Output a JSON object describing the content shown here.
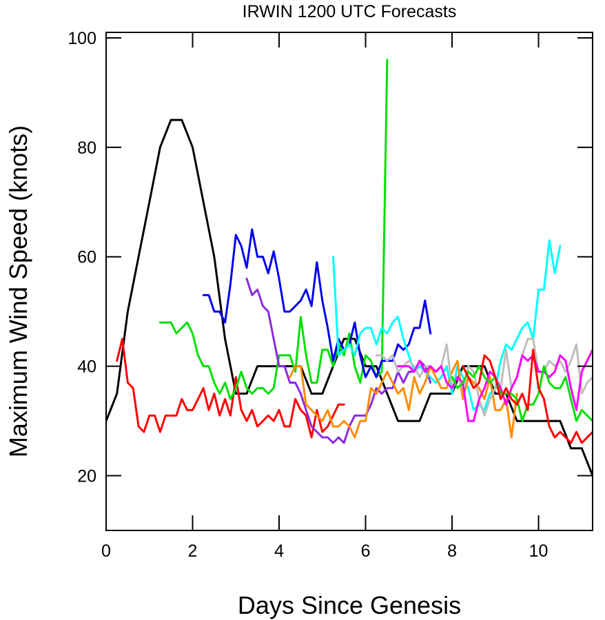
{
  "chart_data": {
    "type": "line",
    "title": "IRWIN 1200 UTC Forecasts",
    "xlabel": "Days Since Genesis",
    "ylabel": "Maximum Wind Speed (knots)",
    "xlim": [
      0,
      11.25
    ],
    "ylim": [
      10,
      101
    ],
    "xticks": [
      0,
      2,
      4,
      6,
      8,
      10
    ],
    "yticks": [
      20,
      40,
      60,
      80,
      100
    ],
    "grid": false,
    "series": [
      {
        "color": "#000000",
        "x": [
          0,
          0.25,
          0.5,
          0.75,
          1.0,
          1.25,
          1.5,
          1.75,
          2.0,
          2.25,
          2.5,
          2.75,
          3.0,
          3.25,
          3.5,
          3.75,
          4.0,
          4.25,
          4.5,
          4.75,
          5.0,
          5.25,
          5.5,
          5.75,
          6.0,
          6.25,
          6.5,
          6.75,
          7.0,
          7.25,
          7.5,
          7.75,
          8.0,
          8.25,
          8.5,
          8.75,
          9.0,
          9.25,
          9.5,
          9.75,
          10.0,
          10.25,
          10.5,
          10.75,
          11.0,
          11.25
        ],
        "y": [
          30,
          35,
          50,
          60,
          70,
          80,
          85,
          85,
          80,
          70,
          60,
          45,
          35,
          35,
          40,
          40,
          40,
          40,
          40,
          35,
          35,
          40,
          45,
          45,
          40,
          40,
          35,
          30,
          30,
          30,
          35,
          35,
          35,
          40,
          40,
          40,
          35,
          35,
          30,
          30,
          30,
          30,
          30,
          25,
          25,
          20
        ]
      },
      {
        "color": "#ff0000",
        "x": [
          0.25,
          0.375,
          0.5,
          0.625,
          0.75,
          0.875,
          1.0,
          1.125,
          1.25,
          1.375,
          1.5,
          1.625,
          1.75,
          1.875,
          2.0,
          2.125,
          2.25,
          2.375,
          2.5,
          2.625,
          2.75,
          2.875,
          3.0,
          3.125,
          3.25,
          3.375,
          3.5,
          3.625,
          3.75,
          3.875,
          4.0,
          4.125,
          4.25,
          4.375,
          4.5,
          4.625,
          4.75,
          4.875,
          5.0,
          5.125,
          5.25,
          5.375,
          5.5
        ],
        "y": [
          41,
          45,
          37,
          36,
          29,
          28,
          31,
          31,
          28,
          31,
          31,
          31,
          34,
          32,
          32,
          34,
          36,
          32,
          35,
          31,
          34,
          31,
          38,
          32,
          30,
          32,
          29,
          30,
          31,
          30,
          32,
          29,
          29,
          34,
          32,
          31,
          27,
          32,
          28,
          29,
          31,
          33,
          33
        ]
      },
      {
        "color": "#00e000",
        "x": [
          1.25,
          1.375,
          1.5,
          1.625,
          1.75,
          1.875,
          2.0,
          2.125,
          2.25,
          2.375,
          2.5,
          2.625,
          2.75,
          2.875,
          3.0,
          3.125,
          3.25,
          3.375,
          3.5,
          3.625,
          3.75,
          3.875,
          4.0,
          4.125,
          4.25,
          4.375,
          4.5,
          4.625,
          4.75,
          4.875,
          5.0,
          5.125,
          5.25,
          5.375,
          5.5,
          5.625,
          5.75,
          5.875,
          6.0,
          6.125,
          6.25,
          6.375,
          6.5
        ],
        "y": [
          48,
          48,
          48,
          46,
          47,
          48,
          46,
          42,
          40,
          40,
          37,
          35,
          37,
          34,
          36,
          39,
          36,
          35,
          36,
          36,
          35,
          36,
          42,
          42,
          42,
          39,
          49,
          42,
          37,
          37,
          43,
          43,
          40,
          44,
          42,
          46,
          40,
          37,
          42,
          41,
          38,
          39,
          96
        ]
      },
      {
        "color": "#0000ee",
        "x": [
          2.25,
          2.375,
          2.5,
          2.625,
          2.75,
          2.875,
          3.0,
          3.125,
          3.25,
          3.375,
          3.5,
          3.625,
          3.75,
          3.875,
          4.0,
          4.125,
          4.25,
          4.375,
          4.5,
          4.625,
          4.75,
          4.875,
          5.0,
          5.125,
          5.25,
          5.375,
          5.5,
          5.625,
          5.75,
          5.875,
          6.0,
          6.125,
          6.25,
          6.375,
          6.5,
          6.625,
          6.75,
          6.875,
          7.0,
          7.125,
          7.25,
          7.375,
          7.5
        ],
        "y": [
          53,
          53,
          50,
          50,
          48,
          55,
          64,
          62,
          58,
          65,
          60,
          60,
          57,
          61,
          56,
          50,
          50,
          51,
          52,
          54,
          51,
          59,
          52,
          47,
          41,
          45,
          43,
          44,
          48,
          42,
          38,
          40,
          38,
          41,
          41,
          41,
          44,
          43,
          44,
          47,
          47,
          52,
          46
        ]
      },
      {
        "color": "#8a2be2",
        "x": [
          3.25,
          3.375,
          3.5,
          3.625,
          3.75,
          3.875,
          4.0,
          4.125,
          4.25,
          4.375,
          4.5,
          4.625,
          4.75,
          4.875,
          5.0,
          5.125,
          5.25,
          5.375,
          5.5,
          5.625,
          5.75,
          5.875,
          6.0,
          6.125,
          6.25,
          6.375,
          6.5,
          6.625,
          6.75,
          6.875,
          7.0,
          7.125,
          7.25,
          7.375,
          7.5
        ],
        "y": [
          56,
          53,
          54,
          51,
          50,
          45,
          40,
          40,
          37,
          37,
          35,
          32,
          29,
          28,
          27,
          27,
          26,
          27,
          26,
          29,
          31,
          31,
          31,
          33,
          36,
          35,
          36,
          36,
          39,
          37,
          39,
          39,
          41,
          40,
          37
        ]
      },
      {
        "color": "#00ffff",
        "x": [
          5.25,
          5.375,
          5.5,
          5.625,
          5.75,
          5.875,
          6.0,
          6.125,
          6.25,
          6.375,
          6.5,
          6.625,
          6.75,
          6.875,
          7.0,
          7.125,
          7.25,
          7.375,
          7.5,
          7.625,
          7.75,
          7.875,
          8.0,
          8.125,
          8.25,
          8.375,
          8.5,
          8.625,
          8.75,
          8.875,
          9.0,
          9.125,
          9.25,
          9.375,
          9.5,
          9.625,
          9.75,
          9.875,
          10.0,
          10.125,
          10.25,
          10.375,
          10.5
        ],
        "y": [
          60,
          42,
          43,
          44,
          42,
          46,
          47,
          47,
          44,
          47,
          46,
          48,
          49,
          45,
          42,
          39,
          40,
          39,
          38,
          37,
          38,
          40,
          35,
          40,
          38,
          36,
          32,
          33,
          32,
          35,
          36,
          41,
          44,
          43,
          45,
          47,
          48,
          45,
          54,
          54,
          63,
          57,
          62
        ]
      },
      {
        "color": "#ff8c00",
        "x": [
          4.25,
          4.375,
          4.5,
          4.625,
          4.75,
          4.875,
          5.0,
          5.125,
          5.25,
          5.375,
          5.5,
          5.625,
          5.75,
          5.875,
          6.0,
          6.125,
          6.25,
          6.375,
          6.5,
          6.625,
          6.75,
          6.875,
          7.0,
          7.125,
          7.25,
          7.375,
          7.5,
          7.625,
          7.75,
          7.875,
          8.0,
          8.125,
          8.25,
          8.375,
          8.5,
          8.625,
          8.75,
          8.875,
          9.0,
          9.125,
          9.25,
          9.375,
          9.5
        ],
        "y": [
          38,
          40,
          40,
          33,
          32,
          31,
          30,
          32,
          29,
          29,
          30,
          29,
          27,
          30,
          30,
          36,
          35,
          37,
          39,
          37,
          35,
          36,
          32,
          38,
          35,
          37,
          40,
          38,
          36,
          36,
          39,
          41,
          34,
          38,
          37,
          36,
          34,
          38,
          32,
          32,
          34,
          27,
          35
        ]
      },
      {
        "color": "#bebebe",
        "x": [
          6.25,
          6.375,
          6.5,
          6.625,
          6.75,
          6.875,
          7.0,
          7.125,
          7.25,
          7.375,
          7.5,
          7.625,
          7.75,
          7.875,
          8.0,
          8.125,
          8.25,
          8.375,
          8.5,
          8.625,
          8.75,
          8.875,
          9.0,
          9.125,
          9.25,
          9.375,
          9.5,
          9.625,
          9.75,
          9.875,
          10.0,
          10.125,
          10.25,
          10.375,
          10.5,
          10.625,
          10.75,
          10.875,
          11.0,
          11.125,
          11.25
        ],
        "y": [
          42,
          42,
          41,
          42,
          39,
          40,
          41,
          40,
          38,
          40,
          40,
          39,
          40,
          44,
          36,
          38,
          36,
          40,
          39,
          34,
          31,
          34,
          36,
          36,
          43,
          36,
          38,
          42,
          45,
          45,
          39,
          39,
          41,
          40,
          41,
          39,
          41,
          44,
          35,
          37,
          38
        ]
      },
      {
        "color": "#ff00ff",
        "x": [
          6.75,
          6.875,
          7.0,
          7.125,
          7.25,
          7.375,
          7.5,
          7.625,
          7.75,
          7.875,
          8.0,
          8.125,
          8.25,
          8.375,
          8.5,
          8.625,
          8.75,
          8.875,
          9.0,
          9.125,
          9.25,
          9.375,
          9.5,
          9.625,
          9.75,
          9.875,
          10.0,
          10.125,
          10.25,
          10.375,
          10.5,
          10.625,
          10.75,
          10.875,
          11.0,
          11.125,
          11.25
        ],
        "y": [
          40,
          40,
          40,
          39,
          41,
          39,
          40,
          39,
          40,
          37,
          36,
          38,
          37,
          30,
          30,
          34,
          36,
          39,
          38,
          36,
          33,
          36,
          38,
          42,
          41,
          42,
          39,
          39,
          38,
          39,
          42,
          41,
          36,
          32,
          39,
          41,
          43
        ]
      },
      {
        "color": "#00e000",
        "x": [
          8.0,
          8.125,
          8.25,
          8.375,
          8.5,
          8.625,
          8.75,
          8.875,
          9.0,
          9.125,
          9.25,
          9.375,
          9.5,
          9.625,
          9.75,
          9.875,
          10.0,
          10.125,
          10.25,
          10.375,
          10.5,
          10.625,
          10.75,
          10.875,
          11.0,
          11.125,
          11.25
        ],
        "y": [
          38,
          36,
          37,
          39,
          38,
          40,
          38,
          37,
          38,
          35,
          35,
          35,
          34,
          30,
          33,
          33,
          35,
          40,
          37,
          36,
          36,
          38,
          34,
          30,
          32,
          31,
          30
        ]
      },
      {
        "color": "#ff0000",
        "x": [
          8.25,
          8.375,
          8.5,
          8.625,
          8.75,
          8.875,
          9.0,
          9.125,
          9.25,
          9.375,
          9.5,
          9.625,
          9.75,
          9.875,
          10.0,
          10.125,
          10.25,
          10.375,
          10.5,
          10.625,
          10.75,
          10.875,
          11.0,
          11.125,
          11.25
        ],
        "y": [
          40,
          38,
          36,
          37,
          42,
          41,
          38,
          34,
          36,
          34,
          33,
          35,
          32,
          43,
          36,
          34,
          29,
          27,
          28,
          27,
          26,
          28,
          26,
          27,
          28
        ]
      }
    ]
  }
}
